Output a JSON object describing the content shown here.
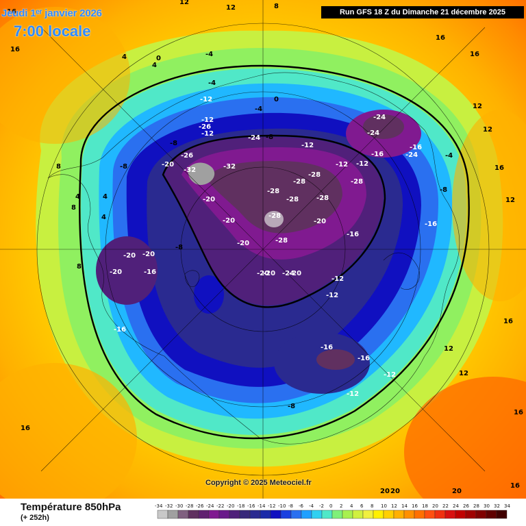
{
  "header": {
    "date": "Jeudi 1ᵉʳ janvier 2026",
    "time": "7:00 locale",
    "run": "Run GFS 18 Z du Dimanche 21 décembre 2025"
  },
  "copyright": "Copyright © 2025 Meteociel.fr",
  "legend": {
    "title": "Température 850hPa",
    "subtitle": "(+ 252h)",
    "ticks": [
      "-34",
      "-32",
      "-30",
      "-28",
      "-26",
      "-24",
      "-22",
      "-20",
      "-18",
      "-16",
      "-14",
      "-12",
      "-10",
      "-8",
      "-6",
      "-4",
      "-2",
      "0",
      "2",
      "4",
      "6",
      "8",
      "10",
      "12",
      "14",
      "16",
      "18",
      "20",
      "22",
      "24",
      "26",
      "28",
      "30",
      "32",
      "34"
    ],
    "colors": [
      "#c8c8c8",
      "#a0a0a0",
      "#806080",
      "#603060",
      "#602070",
      "#801a90",
      "#6a1a8a",
      "#50207a",
      "#38287a",
      "#2a2a90",
      "#1a2aa8",
      "#1010c0",
      "#1a40e0",
      "#2a70f0",
      "#20a0ff",
      "#30d0f0",
      "#50e8c8",
      "#7ff07a",
      "#a8f050",
      "#d0f040",
      "#f0f040",
      "#fff000",
      "#ffd000",
      "#ffb000",
      "#ff9000",
      "#ff7000",
      "#ff5010",
      "#f03010",
      "#d81010",
      "#c00000",
      "#a00000",
      "#800000",
      "#600000",
      "#400000"
    ]
  },
  "map_labels": [
    {
      "t": "16"
    },
    {
      "t": "12"
    },
    {
      "t": "12"
    },
    {
      "t": "8"
    },
    {
      "t": "16"
    },
    {
      "t": "16"
    },
    {
      "t": "16"
    },
    {
      "t": "20"
    },
    {
      "t": "20"
    },
    {
      "t": "20"
    },
    {
      "t": "16"
    },
    {
      "t": "12"
    },
    {
      "t": "12"
    },
    {
      "t": "12"
    },
    {
      "t": "12"
    },
    {
      "t": "12"
    },
    {
      "t": "16"
    },
    {
      "t": "16"
    },
    {
      "t": "16"
    },
    {
      "t": "16"
    },
    {
      "t": "4"
    },
    {
      "t": "4"
    },
    {
      "t": "0"
    },
    {
      "t": "4"
    },
    {
      "t": "8"
    },
    {
      "t": "8"
    },
    {
      "t": "8"
    },
    {
      "t": "4"
    },
    {
      "t": "4"
    },
    {
      "t": "0"
    },
    {
      "t": "-4"
    },
    {
      "t": "-4"
    },
    {
      "t": "-4"
    },
    {
      "t": "-4"
    },
    {
      "t": "-8"
    },
    {
      "t": "-8"
    },
    {
      "t": "-8"
    },
    {
      "t": "-8"
    },
    {
      "t": "-8"
    },
    {
      "t": "-8"
    },
    {
      "t": "-12"
    },
    {
      "t": "-12"
    },
    {
      "t": "-12"
    },
    {
      "t": "-12"
    },
    {
      "t": "-12"
    },
    {
      "t": "-12"
    },
    {
      "t": "-12"
    },
    {
      "t": "-12"
    },
    {
      "t": "-12"
    },
    {
      "t": "-12"
    },
    {
      "t": "-16"
    },
    {
      "t": "-16"
    },
    {
      "t": "-16"
    },
    {
      "t": "-16"
    },
    {
      "t": "-16"
    },
    {
      "t": "-16"
    },
    {
      "t": "-16"
    },
    {
      "t": "-16"
    },
    {
      "t": "-20"
    },
    {
      "t": "-20"
    },
    {
      "t": "-20"
    },
    {
      "t": "-20"
    },
    {
      "t": "-20"
    },
    {
      "t": "-20"
    },
    {
      "t": "-20"
    },
    {
      "t": "-20"
    },
    {
      "t": "-20"
    },
    {
      "t": "-20"
    },
    {
      "t": "-20"
    },
    {
      "t": "-24"
    },
    {
      "t": "-24"
    },
    {
      "t": "-24"
    },
    {
      "t": "-24"
    },
    {
      "t": "-24"
    },
    {
      "t": "-28"
    },
    {
      "t": "-28"
    },
    {
      "t": "-28"
    },
    {
      "t": "-28"
    },
    {
      "t": "-28"
    },
    {
      "t": "-28"
    },
    {
      "t": "-28"
    },
    {
      "t": "-28"
    },
    {
      "t": "-32"
    },
    {
      "t": "-32"
    },
    {
      "t": "-26"
    },
    {
      "t": "-26"
    }
  ]
}
